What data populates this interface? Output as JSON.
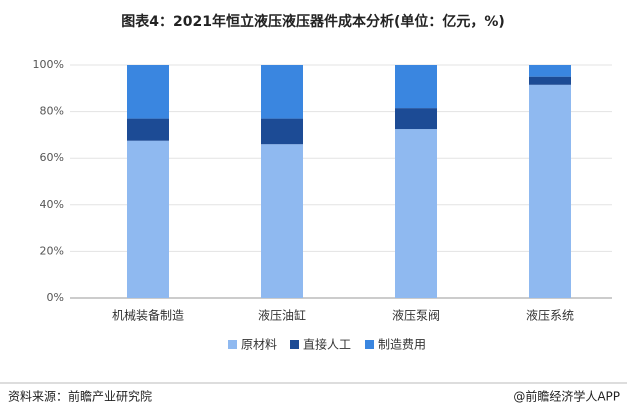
{
  "chart_data": {
    "type": "stacked_bar",
    "title": "图表4：2021年恒立液压液压器件成本分析(单位：亿元，%)",
    "categories": [
      "机械装备制造",
      "液压油缸",
      "液压泵阀",
      "液压系统"
    ],
    "series": [
      {
        "name": "原材料",
        "color": "#8fb9f0",
        "values": [
          67.5,
          66,
          72.5,
          91.5
        ]
      },
      {
        "name": "直接人工",
        "color": "#1c4b95",
        "values": [
          9.5,
          11,
          9,
          3.5
        ]
      },
      {
        "name": "制造费用",
        "color": "#3a86e0",
        "values": [
          23,
          23,
          18.5,
          5
        ]
      }
    ],
    "ylim": [
      0,
      100
    ],
    "yticks": [
      {
        "value": 0,
        "label": "0%"
      },
      {
        "value": 20,
        "label": "20%"
      },
      {
        "value": 40,
        "label": "40%"
      },
      {
        "value": 60,
        "label": "60%"
      },
      {
        "value": 80,
        "label": "80%"
      },
      {
        "value": 100,
        "label": "100%"
      }
    ],
    "grid": true,
    "legend": "bottom",
    "source": "资料来源：前瞻产业研究院",
    "brand": "@前瞻经济学人APP"
  }
}
